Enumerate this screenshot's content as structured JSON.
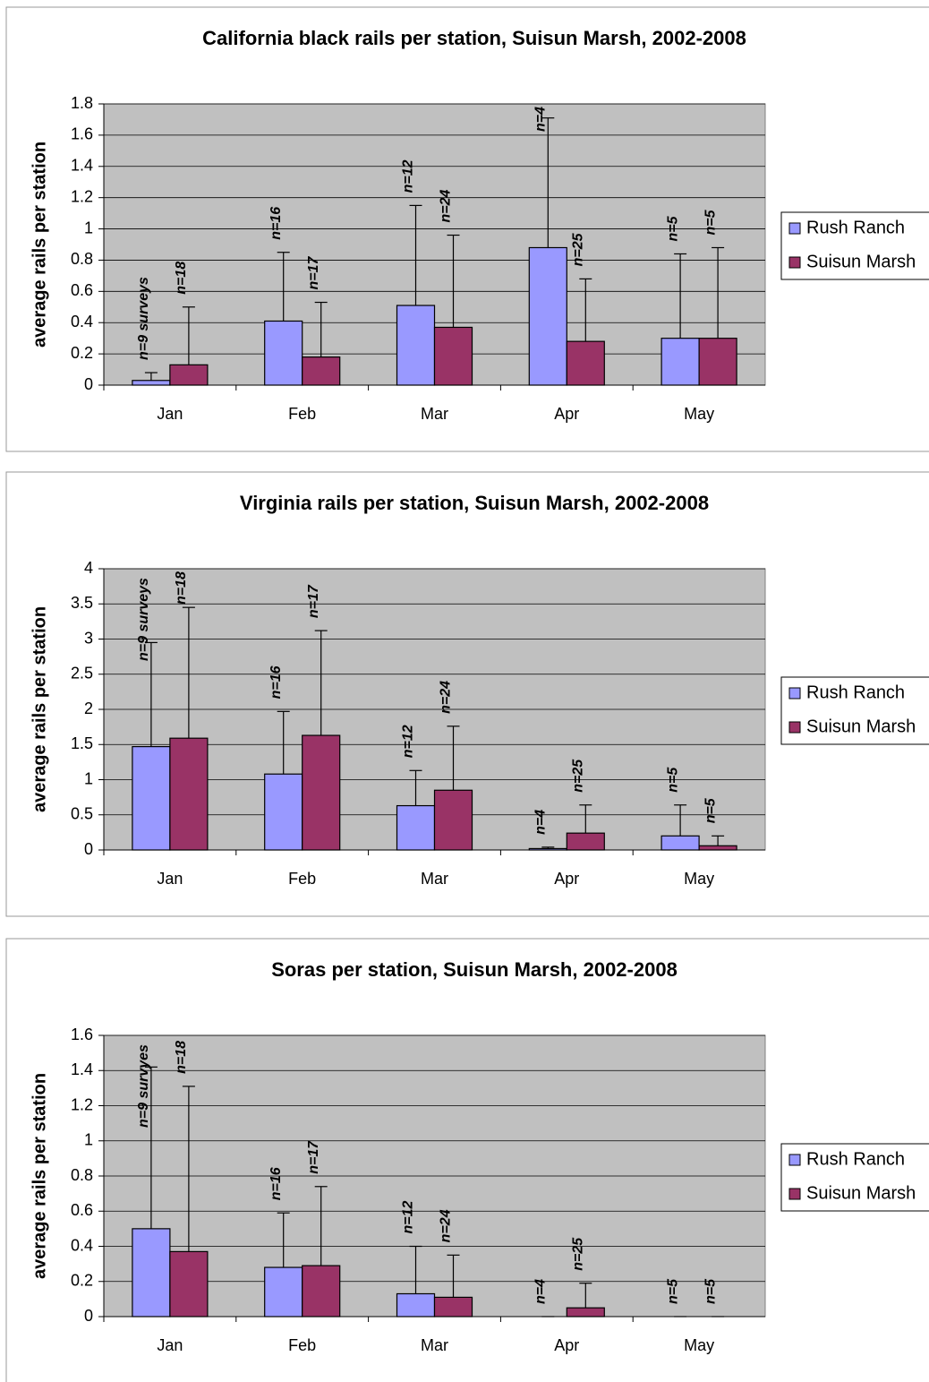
{
  "chart_data": [
    {
      "type": "bar",
      "title": "California black rails per station, Suisun Marsh, 2002-2008",
      "y_label": "average rails per station",
      "legend": "right",
      "grid": true,
      "categories": [
        "Jan",
        "Feb",
        "Mar",
        "Apr",
        "May"
      ],
      "ylim": [
        0,
        1.8
      ],
      "yticks": [
        0,
        0.2,
        0.4,
        0.6,
        0.8,
        1,
        1.2,
        1.4,
        1.6,
        1.8
      ],
      "series": [
        {
          "name": "Rush Ranch",
          "color": "#9999ff",
          "values": [
            0.03,
            0.41,
            0.51,
            0.88,
            0.3
          ],
          "errors": [
            0.05,
            0.44,
            0.64,
            0.83,
            0.54
          ],
          "n_labels": [
            "n=9 surveys",
            "n=16",
            "n=12",
            "n=4",
            "n=5"
          ]
        },
        {
          "name": "Suisun Marsh",
          "color": "#993366",
          "values": [
            0.13,
            0.18,
            0.37,
            0.28,
            0.3
          ],
          "errors": [
            0.37,
            0.35,
            0.59,
            0.4,
            0.58
          ],
          "n_labels": [
            "n=18",
            "n=17",
            "n=24",
            "n=25",
            "n=5"
          ]
        }
      ]
    },
    {
      "type": "bar",
      "title": "Virginia rails per station, Suisun Marsh, 2002-2008",
      "y_label": "average rails per station",
      "legend": "right",
      "grid": true,
      "categories": [
        "Jan",
        "Feb",
        "Mar",
        "Apr",
        "May"
      ],
      "ylim": [
        0,
        4
      ],
      "yticks": [
        0,
        0.5,
        1,
        1.5,
        2,
        2.5,
        3,
        3.5,
        4
      ],
      "series": [
        {
          "name": "Rush Ranch",
          "color": "#9999ff",
          "values": [
            1.47,
            1.08,
            0.63,
            0.02,
            0.2
          ],
          "errors": [
            1.48,
            0.89,
            0.5,
            0.02,
            0.44
          ],
          "n_labels": [
            "n=9 surveys",
            "n=16",
            "n=12",
            "n=4",
            "n=5"
          ]
        },
        {
          "name": "Suisun Marsh",
          "color": "#993366",
          "values": [
            1.59,
            1.63,
            0.85,
            0.24,
            0.06
          ],
          "errors": [
            1.86,
            1.49,
            0.91,
            0.4,
            0.14
          ],
          "n_labels": [
            "n=18",
            "n=17",
            "n=24",
            "n=25",
            "n=5"
          ]
        }
      ]
    },
    {
      "type": "bar",
      "title": "Soras per station, Suisun Marsh, 2002-2008",
      "y_label": "average rails per station",
      "legend": "right",
      "grid": true,
      "categories": [
        "Jan",
        "Feb",
        "Mar",
        "Apr",
        "May"
      ],
      "ylim": [
        0,
        1.6
      ],
      "yticks": [
        0,
        0.2,
        0.4,
        0.6,
        0.8,
        1,
        1.2,
        1.4,
        1.6
      ],
      "series": [
        {
          "name": "Rush Ranch",
          "color": "#9999ff",
          "values": [
            0.5,
            0.28,
            0.13,
            0,
            0
          ],
          "errors": [
            0.92,
            0.31,
            0.27,
            0,
            0
          ],
          "n_labels": [
            "n=9 survyes",
            "n=16",
            "n=12",
            "n=4",
            "n=5"
          ]
        },
        {
          "name": "Suisun Marsh",
          "color": "#993366",
          "values": [
            0.37,
            0.29,
            0.11,
            0.05,
            0
          ],
          "errors": [
            0.94,
            0.45,
            0.24,
            0.14,
            0
          ],
          "n_labels": [
            "n=18",
            "n=17",
            "n=24",
            "n=25",
            "n=5"
          ]
        }
      ]
    }
  ]
}
